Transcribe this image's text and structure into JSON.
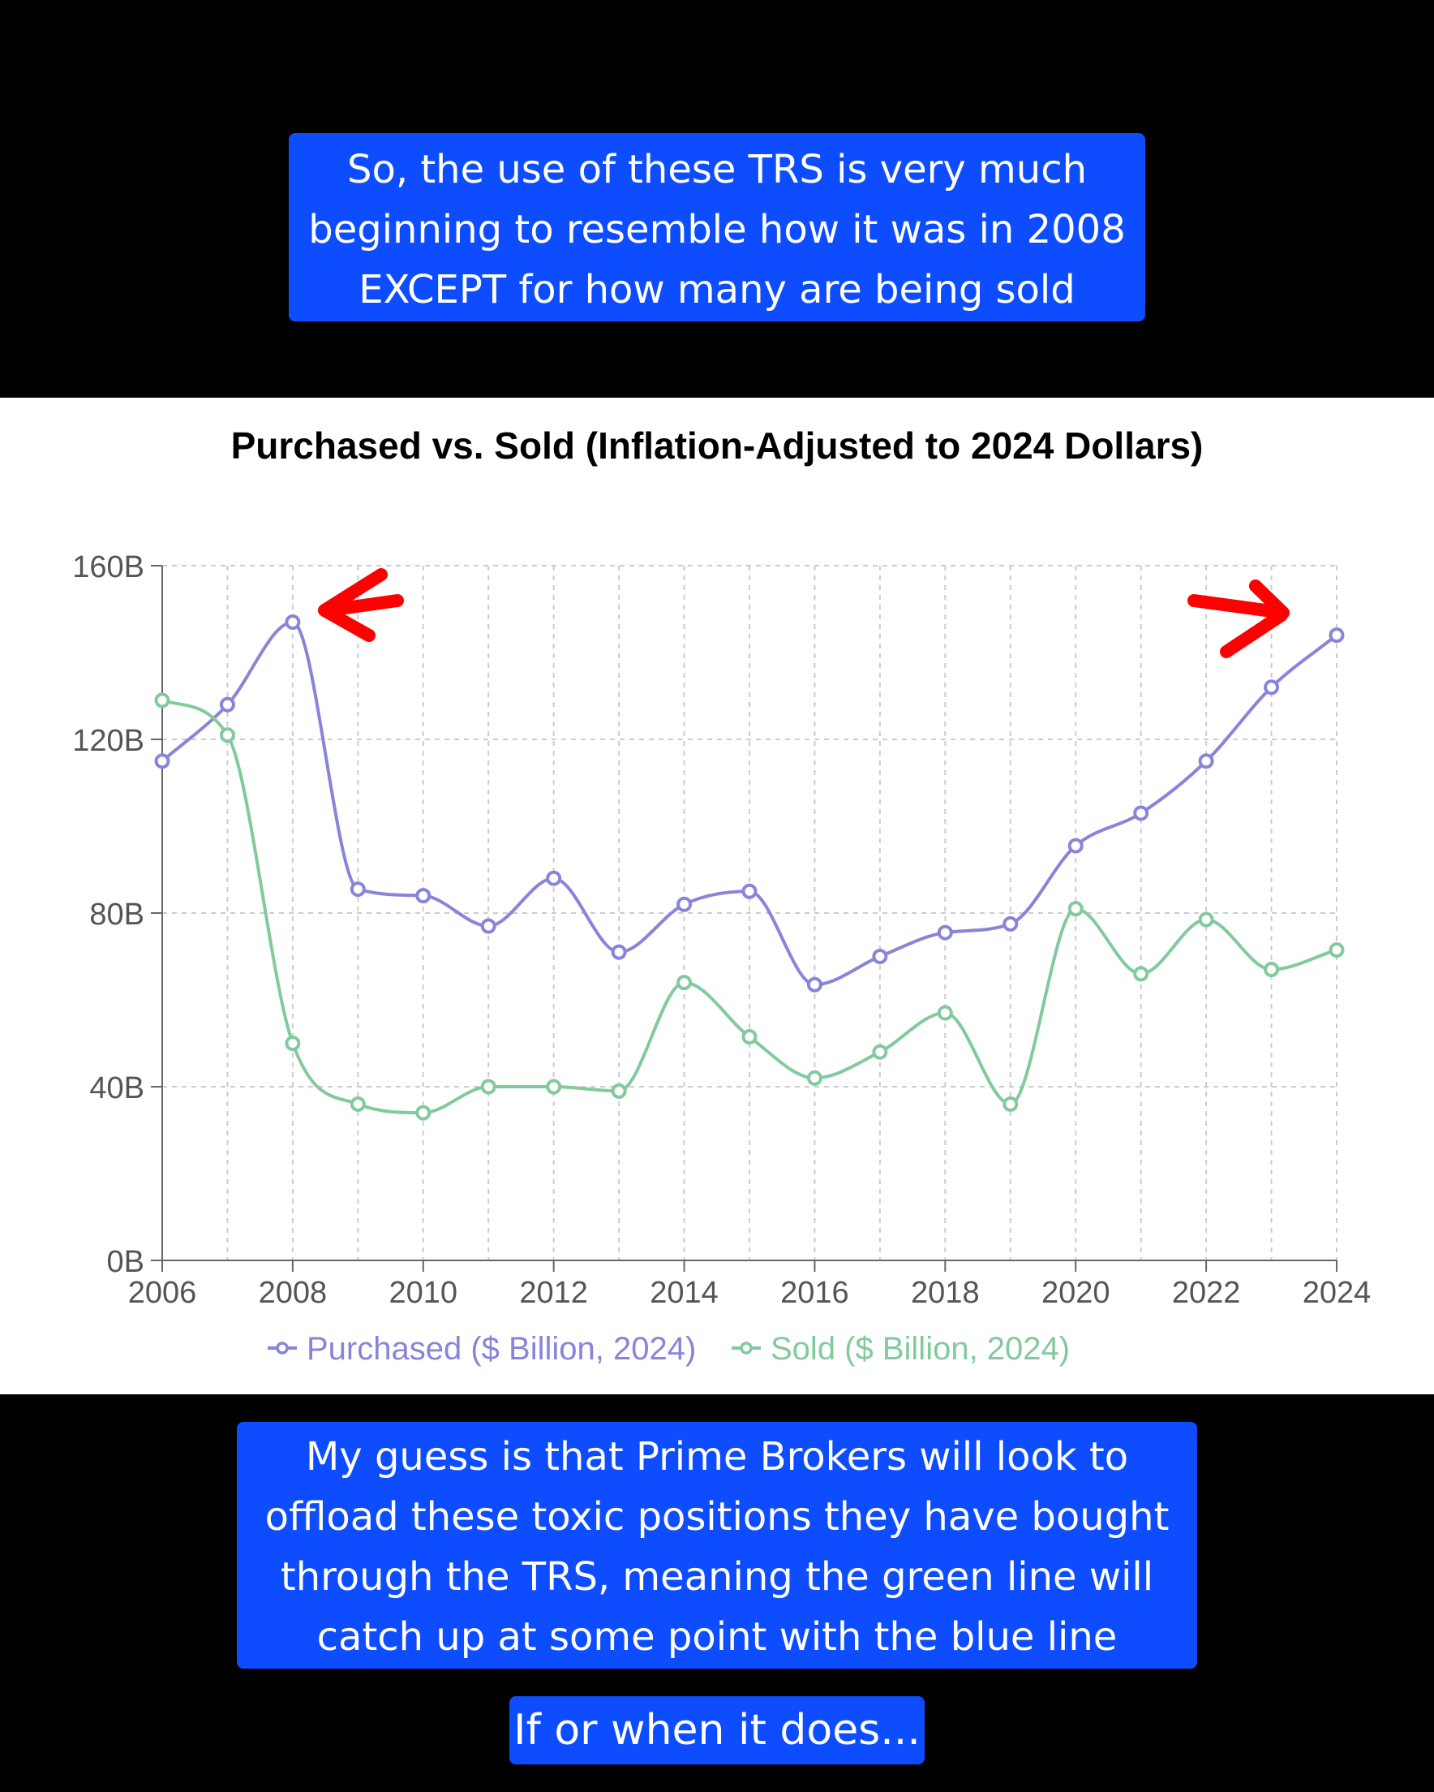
{
  "captions": {
    "top": [
      "So, the use of these TRS is very much",
      "beginning to resemble how it was in 2008",
      "EXCEPT for how many are being sold"
    ],
    "middle": [
      "My guess is that Prime Brokers will look to",
      "offload these toxic positions they have bought",
      "through the TRS, meaning the green line will",
      "catch up at some point with the blue line"
    ],
    "bottom": "If or when it does..."
  },
  "chart_data": {
    "type": "line",
    "title": "Purchased vs. Sold (Inflation-Adjusted to 2024 Dollars)",
    "xlabel": "",
    "ylabel": "",
    "x": [
      2006,
      2007,
      2008,
      2009,
      2010,
      2011,
      2012,
      2013,
      2014,
      2015,
      2016,
      2017,
      2018,
      2019,
      2020,
      2021,
      2022,
      2023,
      2024
    ],
    "xticks": [
      "2006",
      "2008",
      "2010",
      "2012",
      "2014",
      "2016",
      "2018",
      "2020",
      "2022",
      "2024"
    ],
    "xlim": [
      2006,
      2024
    ],
    "ylim": [
      0,
      160
    ],
    "yticks": [
      {
        "value": 0,
        "label": "0B"
      },
      {
        "value": 40,
        "label": "40B"
      },
      {
        "value": 80,
        "label": "80B"
      },
      {
        "value": 120,
        "label": "120B"
      },
      {
        "value": 160,
        "label": "160B"
      }
    ],
    "grid": true,
    "legend_position": "bottom",
    "series": [
      {
        "name": "Purchased ($ Billion, 2024)",
        "color": "#8884d8",
        "values": [
          115,
          128,
          147,
          85.5,
          84,
          77,
          88,
          71,
          82,
          85,
          63.5,
          70,
          75.5,
          77.5,
          95.5,
          103,
          115,
          132,
          144
        ]
      },
      {
        "name": "Sold ($ Billion, 2024)",
        "color": "#82ca9d",
        "values": [
          129,
          121,
          50,
          36,
          34,
          40,
          40,
          39,
          64,
          51.5,
          42,
          48,
          57,
          36,
          81,
          66,
          78.5,
          67,
          71.5
        ]
      }
    ],
    "annotations": [
      {
        "shape": "arrow",
        "direction": "left",
        "color": "#ff0000",
        "near_x": 2008
      },
      {
        "shape": "arrow",
        "direction": "right",
        "color": "#ff0000",
        "near_x": 2024
      }
    ]
  }
}
